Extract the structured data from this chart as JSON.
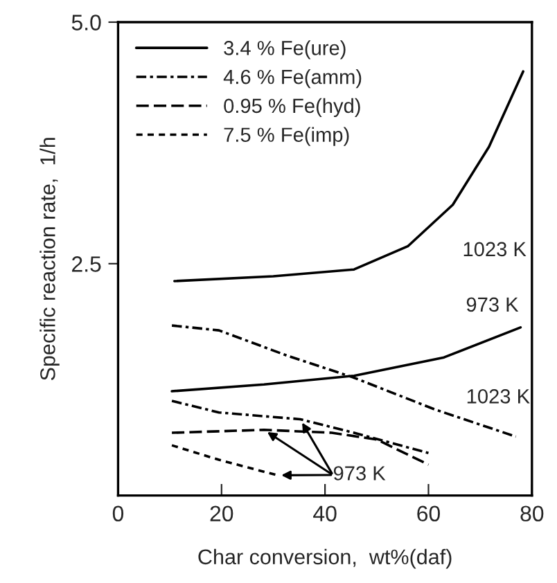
{
  "chart_data": {
    "type": "line",
    "xlabel": "Char conversion,  wt%(daf)",
    "ylabel": "Specific reaction rate,  1/h",
    "xlim": [
      0,
      80
    ],
    "xticks": [
      0,
      20,
      40,
      60,
      80
    ],
    "ylim": [
      0.1,
      5.0
    ],
    "yticks": [
      {
        "value": 2.5,
        "label": "2.5"
      },
      {
        "value": 5.0,
        "label": "5.0"
      }
    ],
    "grid": false,
    "legend": "top left",
    "marker": "none",
    "series": [
      {
        "name": "3.4 % Fe(ure)",
        "color": "#000000",
        "line_style": "solid",
        "x": [
          10.9,
          30,
          45.6,
          56,
          64.7,
          71.7,
          78.3
        ],
        "values": [
          2.32,
          2.37,
          2.44,
          2.68,
          3.11,
          3.71,
          4.49
        ]
      },
      {
        "color": "#000000",
        "line_style": "solid",
        "x": [
          10.4,
          28.2,
          45.6,
          63,
          77.8
        ],
        "values": [
          1.18,
          1.25,
          1.34,
          1.53,
          1.84
        ]
      },
      {
        "name": "4.6 % Fe(amm)",
        "color": "#000000",
        "line_style": "dashdot",
        "x": [
          10.4,
          19.5,
          32.6,
          45.6,
          61.3,
          76.9
        ],
        "values": [
          1.86,
          1.81,
          1.55,
          1.32,
          0.99,
          0.71
        ]
      },
      {
        "color": "#000000",
        "line_style": "dashdot",
        "x": [
          10.4,
          19.5,
          35.2,
          45.6,
          60
        ],
        "values": [
          1.08,
          0.96,
          0.89,
          0.75,
          0.54
        ]
      },
      {
        "name": "0.95 % Fe(hyd)",
        "color": "#000000",
        "line_style": "dashed",
        "x": [
          10.4,
          28.2,
          41.3,
          50,
          60
        ],
        "values": [
          0.75,
          0.78,
          0.75,
          0.68,
          0.42
        ]
      },
      {
        "name": "7.5 % Fe(imp)",
        "color": "#000000",
        "line_style": "dotted",
        "x": [
          10.4,
          19.5,
          30.8
        ],
        "values": [
          0.62,
          0.47,
          0.31
        ]
      }
    ],
    "annotations": [
      {
        "text": "1023 K",
        "x": 64.7,
        "y": 3.11
      },
      {
        "text": "973 K",
        "x": 77.8,
        "y": 1.84
      },
      {
        "text": "1023 K",
        "x": 61.3,
        "y": 0.99
      },
      {
        "text": "973 K",
        "x": 35.2,
        "y": 0.89
      }
    ]
  }
}
